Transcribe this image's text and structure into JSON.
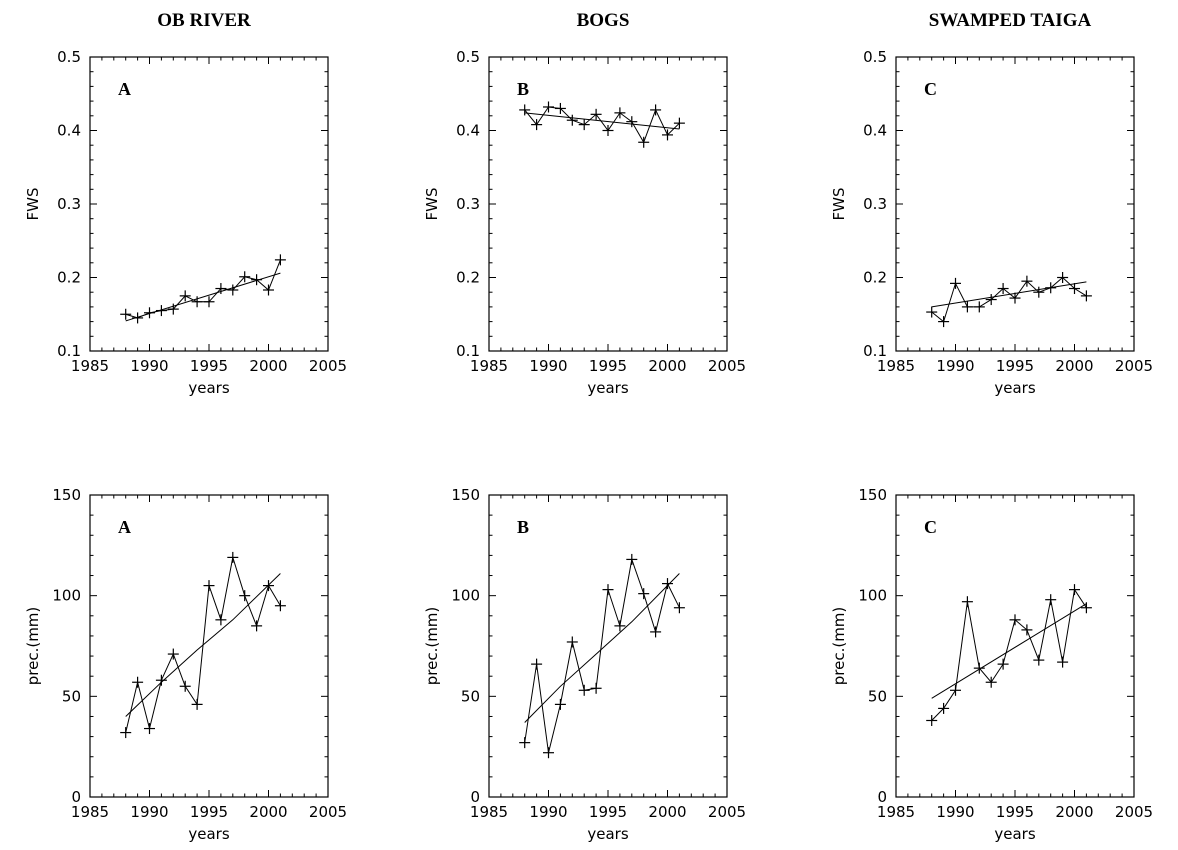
{
  "column_titles": [
    "OB RIVER",
    "BOGS",
    "SWAMPED TAIGA"
  ],
  "chart_data": [
    {
      "type": "line",
      "panel_label": "A",
      "xlabel": "years",
      "ylabel": "FWS",
      "xlim": [
        1985,
        2005
      ],
      "ylim": [
        0.1,
        0.5
      ],
      "xticks": [
        1985,
        1990,
        1995,
        2000,
        2005
      ],
      "yticks": [
        0.1,
        0.2,
        0.3,
        0.4,
        0.5
      ],
      "ytick_labels": [
        "0.1",
        "0.2",
        "0.3",
        "0.4",
        "0.5"
      ],
      "x": [
        1988,
        1989,
        1990,
        1991,
        1992,
        1993,
        1994,
        1995,
        1996,
        1997,
        1998,
        1999,
        2000,
        2001
      ],
      "values": [
        0.15,
        0.145,
        0.152,
        0.155,
        0.157,
        0.175,
        0.167,
        0.167,
        0.185,
        0.183,
        0.201,
        0.197,
        0.183,
        0.224
      ],
      "trend": [
        [
          1988,
          0.141
        ],
        [
          2001,
          0.206
        ]
      ]
    },
    {
      "type": "line",
      "panel_label": "B",
      "xlabel": "years",
      "ylabel": "FWS",
      "xlim": [
        1985,
        2005
      ],
      "ylim": [
        0.1,
        0.5
      ],
      "xticks": [
        1985,
        1990,
        1995,
        2000,
        2005
      ],
      "yticks": [
        0.1,
        0.2,
        0.3,
        0.4,
        0.5
      ],
      "ytick_labels": [
        "0.1",
        "0.2",
        "0.3",
        "0.4",
        "0.5"
      ],
      "x": [
        1988,
        1989,
        1990,
        1991,
        1992,
        1993,
        1994,
        1995,
        1996,
        1997,
        1998,
        1999,
        2000,
        2001
      ],
      "values": [
        0.428,
        0.408,
        0.432,
        0.43,
        0.414,
        0.408,
        0.422,
        0.4,
        0.424,
        0.412,
        0.384,
        0.428,
        0.394,
        0.41
      ],
      "trend": [
        [
          1988,
          0.424
        ],
        [
          2001,
          0.402
        ]
      ]
    },
    {
      "type": "line",
      "panel_label": "C",
      "xlabel": "years",
      "ylabel": "FWS",
      "xlim": [
        1985,
        2005
      ],
      "ylim": [
        0.1,
        0.5
      ],
      "xticks": [
        1985,
        1990,
        1995,
        2000,
        2005
      ],
      "yticks": [
        0.1,
        0.2,
        0.3,
        0.4,
        0.5
      ],
      "ytick_labels": [
        "0.1",
        "0.2",
        "0.3",
        "0.4",
        "0.5"
      ],
      "x": [
        1988,
        1989,
        1990,
        1991,
        1992,
        1993,
        1994,
        1995,
        1996,
        1997,
        1998,
        1999,
        2000,
        2001
      ],
      "values": [
        0.153,
        0.14,
        0.192,
        0.16,
        0.16,
        0.17,
        0.185,
        0.172,
        0.195,
        0.18,
        0.186,
        0.2,
        0.185,
        0.175
      ],
      "trend": [
        [
          1988,
          0.16
        ],
        [
          2001,
          0.194
        ]
      ]
    },
    {
      "type": "line",
      "panel_label": "A",
      "xlabel": "years",
      "ylabel": "prec.(mm)",
      "xlim": [
        1985,
        2005
      ],
      "ylim": [
        0,
        150
      ],
      "xticks": [
        1985,
        1990,
        1995,
        2000,
        2005
      ],
      "yticks": [
        0,
        50,
        100,
        150
      ],
      "ytick_labels": [
        "0",
        "50",
        "100",
        "150"
      ],
      "x": [
        1988,
        1989,
        1990,
        1991,
        1992,
        1993,
        1994,
        1995,
        1996,
        1997,
        1998,
        1999,
        2000,
        2001
      ],
      "values": [
        32,
        57,
        34,
        58,
        71,
        55,
        46,
        105,
        88,
        119,
        100,
        85,
        105,
        95
      ],
      "trend": [
        [
          1988,
          40
        ],
        [
          1991,
          57
        ],
        [
          1994,
          73
        ],
        [
          1997,
          88
        ],
        [
          2001,
          111
        ]
      ]
    },
    {
      "type": "line",
      "panel_label": "B",
      "xlabel": "years",
      "ylabel": "prec.(mm)",
      "xlim": [
        1985,
        2005
      ],
      "ylim": [
        0,
        150
      ],
      "xticks": [
        1985,
        1990,
        1995,
        2000,
        2005
      ],
      "yticks": [
        0,
        50,
        100,
        150
      ],
      "ytick_labels": [
        "0",
        "50",
        "100",
        "150"
      ],
      "x": [
        1988,
        1989,
        1990,
        1991,
        1992,
        1993,
        1994,
        1995,
        1996,
        1997,
        1998,
        1999,
        2000,
        2001
      ],
      "values": [
        27,
        66,
        22,
        46,
        77,
        53,
        54,
        103,
        85,
        118,
        101,
        82,
        106,
        94
      ],
      "trend": [
        [
          1988,
          37
        ],
        [
          1991,
          55
        ],
        [
          1994,
          71
        ],
        [
          1997,
          87
        ],
        [
          2001,
          111
        ]
      ]
    },
    {
      "type": "line",
      "panel_label": "C",
      "xlabel": "years",
      "ylabel": "prec.(mm)",
      "xlim": [
        1985,
        2005
      ],
      "ylim": [
        0,
        150
      ],
      "xticks": [
        1985,
        1990,
        1995,
        2000,
        2005
      ],
      "yticks": [
        0,
        50,
        100,
        150
      ],
      "ytick_labels": [
        "0",
        "50",
        "100",
        "150"
      ],
      "x": [
        1988,
        1989,
        1990,
        1991,
        1992,
        1993,
        1994,
        1995,
        1996,
        1997,
        1998,
        1999,
        2000,
        2001
      ],
      "values": [
        38,
        44,
        53,
        97,
        64,
        57,
        66,
        88,
        83,
        68,
        98,
        67,
        103,
        94
      ],
      "trend": [
        [
          1988,
          49
        ],
        [
          2001,
          96
        ]
      ]
    }
  ]
}
